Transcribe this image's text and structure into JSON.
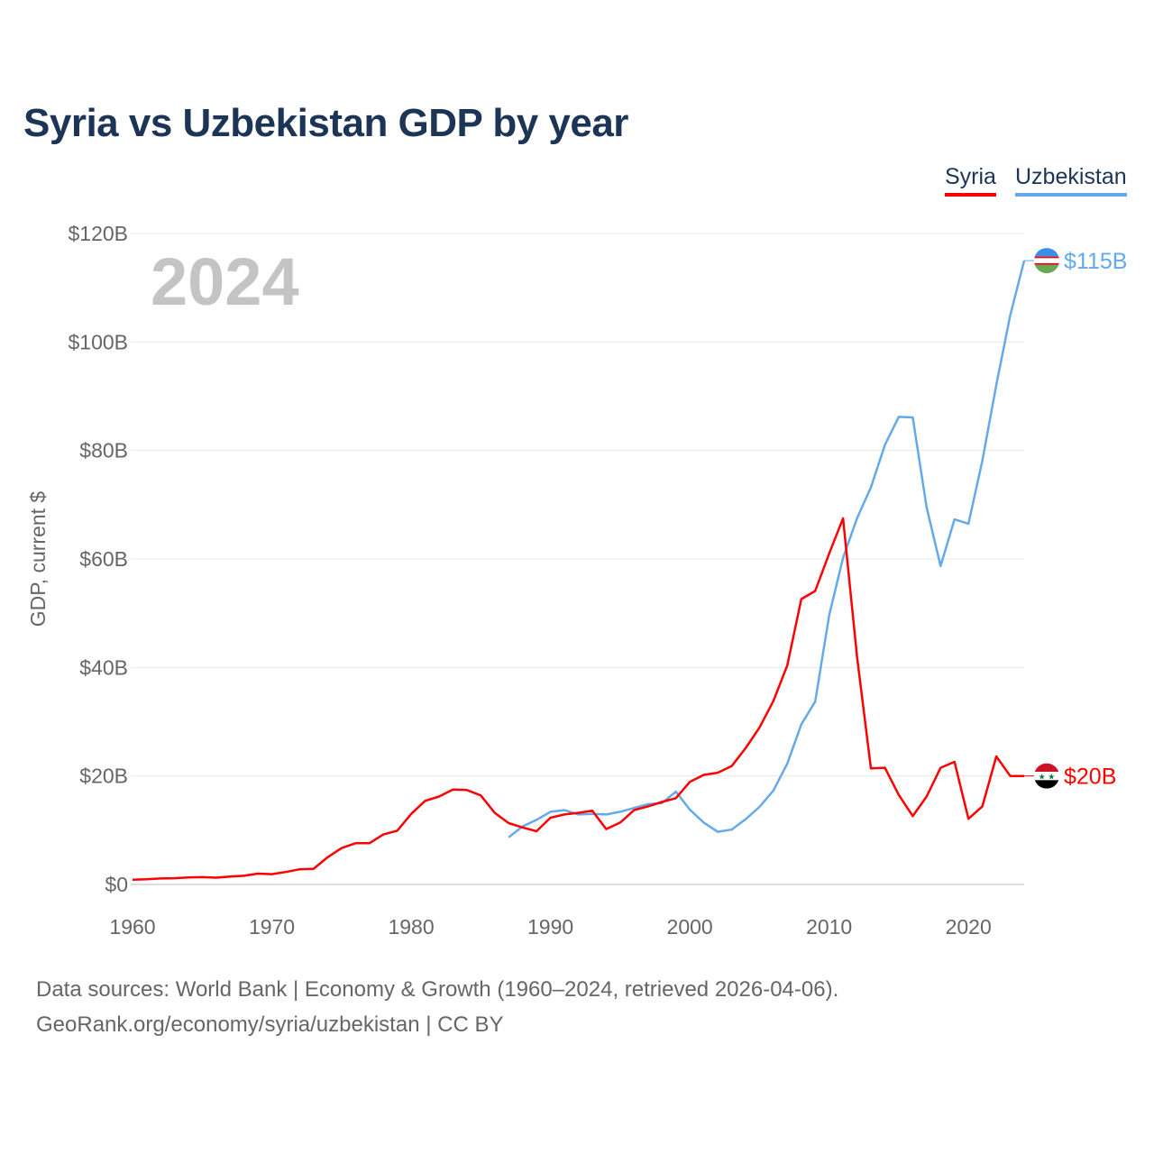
{
  "title": "Syria vs Uzbekistan GDP by year",
  "footer": {
    "line1": "Data sources: World Bank | Economy & Growth (1960–2024, retrieved 2026-04-06).",
    "line2": "GeoRank.org/economy/syria/uzbekistan | CC BY"
  },
  "chart_data": {
    "type": "line",
    "title": "Syria vs Uzbekistan GDP by year",
    "ylabel": "GDP, current $",
    "xlabel": "",
    "year_watermark": "2024",
    "xlim": [
      1960,
      2024
    ],
    "ylim": [
      0,
      120
    ],
    "x_ticks": [
      "1960",
      "1970",
      "1980",
      "1990",
      "2000",
      "2010",
      "2020"
    ],
    "y_ticks": [
      "$0",
      "$20B",
      "$40B",
      "$60B",
      "$80B",
      "$100B",
      "$120B"
    ],
    "grid": true,
    "legend_placement": "top-right",
    "series": [
      {
        "name": "Syria",
        "color": "#ff0000",
        "end_label": "$20B",
        "flag": "syria-flag",
        "start_year": 1960,
        "values": [
          0.86,
          0.95,
          1.1,
          1.15,
          1.3,
          1.35,
          1.25,
          1.45,
          1.6,
          2.0,
          1.9,
          2.3,
          2.8,
          2.9,
          5.0,
          6.7,
          7.6,
          7.6,
          9.2,
          9.9,
          13.0,
          15.4,
          16.2,
          17.5,
          17.4,
          16.4,
          13.2,
          11.3,
          10.5,
          9.8,
          12.3,
          12.9,
          13.2,
          13.6,
          10.2,
          11.4,
          13.7,
          14.4,
          15.2,
          15.9,
          18.9,
          20.2,
          20.6,
          21.8,
          25.1,
          28.9,
          33.8,
          40.4,
          52.6,
          54.1,
          61.0,
          67.5,
          42.0,
          21.4,
          21.5,
          16.5,
          12.6,
          16.2,
          21.5,
          22.6,
          12.1,
          14.4,
          23.6,
          20.0,
          20.0
        ]
      },
      {
        "name": "Uzbekistan",
        "color": "#64a9ea",
        "end_label": "$115B",
        "flag": "uzbekistan-flag",
        "start_year": 1987,
        "values": [
          8.7,
          10.7,
          11.9,
          13.4,
          13.7,
          12.9,
          13.0,
          12.9,
          13.4,
          14.1,
          14.8,
          15.0,
          17.1,
          13.8,
          11.4,
          9.7,
          10.1,
          12.0,
          14.3,
          17.3,
          22.3,
          29.5,
          33.7,
          49.6,
          60.2,
          67.5,
          73.2,
          81.0,
          86.2,
          86.1,
          69.5,
          58.7,
          67.3,
          66.5,
          78.1,
          92.1,
          104.9,
          115.0
        ]
      }
    ]
  }
}
